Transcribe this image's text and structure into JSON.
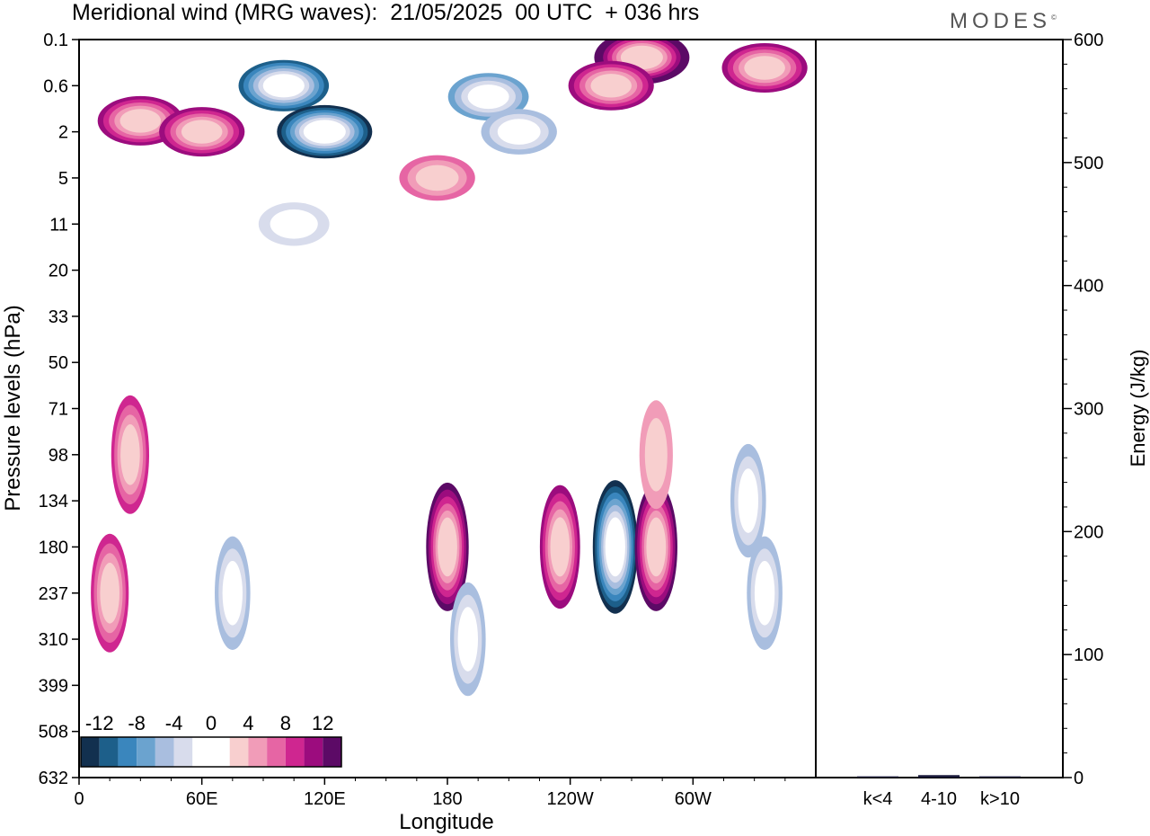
{
  "title": "Meridional wind (MRG waves):  21/05/2025  00 UTC  + 036 hrs",
  "logo": "MODES",
  "chart_data": [
    {
      "type": "heatmap",
      "xlabel": "Longitude",
      "ylabel": "Pressure levels (hPa)",
      "x_ticks": [
        "0",
        "60E",
        "120E",
        "180",
        "120W",
        "60W"
      ],
      "y_ticks": [
        "0.1",
        "0.6",
        "2",
        "5",
        "11",
        "20",
        "33",
        "50",
        "71",
        "98",
        "134",
        "180",
        "237",
        "310",
        "399",
        "508",
        "632"
      ],
      "colorbar": {
        "labels": [
          "-12",
          "-8",
          "-4",
          "0",
          "4",
          "8",
          "12"
        ],
        "colors": [
          "#12304f",
          "#1d5f8a",
          "#3a86bd",
          "#6ba3cf",
          "#a9bedf",
          "#d8dcec",
          "#ffffff",
          "#ffffff",
          "#f8cfcf",
          "#f19cb8",
          "#e665a4",
          "#cf2690",
          "#9c0c7e",
          "#5c0a66"
        ]
      },
      "features": [
        {
          "lon": 30,
          "level": "1.5",
          "value": 10
        },
        {
          "lon": 60,
          "level": "2",
          "value": 10
        },
        {
          "lon": 100,
          "level": "0.6",
          "value": -12
        },
        {
          "lon": 120,
          "level": "2",
          "value": -14
        },
        {
          "lon": 200,
          "level": "0.8",
          "value": -8
        },
        {
          "lon": 215,
          "level": "2",
          "value": -6
        },
        {
          "lon": 275,
          "level": "0.2",
          "value": 14
        },
        {
          "lon": 260,
          "level": "0.6",
          "value": 10
        },
        {
          "lon": 335,
          "level": "0.3",
          "value": 10
        },
        {
          "lon": 175,
          "level": "5",
          "value": 6
        },
        {
          "lon": 105,
          "level": "11",
          "value": -4
        },
        {
          "lon": 25,
          "level": "98",
          "value": 8
        },
        {
          "lon": 15,
          "level": "237",
          "value": 8
        },
        {
          "lon": 75,
          "level": "237",
          "value": -6
        },
        {
          "lon": 180,
          "level": "180",
          "value": 12
        },
        {
          "lon": 190,
          "level": "310",
          "value": -6
        },
        {
          "lon": 235,
          "level": "180",
          "value": 10
        },
        {
          "lon": 262,
          "level": "180",
          "value": -14
        },
        {
          "lon": 282,
          "level": "180",
          "value": 12
        },
        {
          "lon": 282,
          "level": "98",
          "value": 4
        },
        {
          "lon": 327,
          "level": "134",
          "value": -6
        },
        {
          "lon": 335,
          "level": "237",
          "value": -6
        }
      ]
    },
    {
      "type": "bar",
      "ylabel": "Energy (J/kg)",
      "categories": [
        "k<4",
        "4-10",
        "k>10"
      ],
      "values": [
        1,
        2,
        1
      ],
      "ylim": [
        0,
        600
      ],
      "y_ticks": [
        "0",
        "100",
        "200",
        "300",
        "400",
        "500",
        "600"
      ]
    }
  ]
}
